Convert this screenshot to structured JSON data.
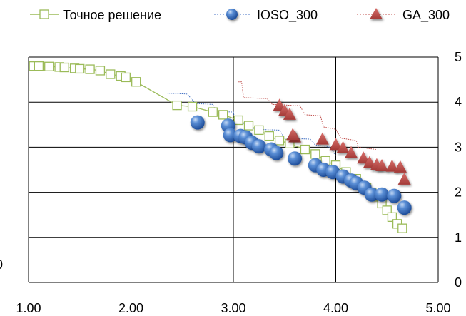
{
  "chart_data": {
    "type": "scatter",
    "title": "",
    "xlabel": "",
    "ylabel": "",
    "xlim": [
      1,
      5
    ],
    "ylim": [
      0,
      5
    ],
    "x_ticks": [
      "1.00",
      "2.00",
      "3.00",
      "4.00",
      "5.00"
    ],
    "y_ticks": [
      "0",
      "1",
      "2",
      "3",
      "4",
      "5"
    ],
    "left_edge_label": "0",
    "grid": true,
    "legend_position": "top",
    "series": [
      {
        "name": "Точное решение",
        "marker": "square-open",
        "color": "#9BBB59",
        "line": true,
        "points": [
          [
            1.05,
            4.8
          ],
          [
            1.1,
            4.8
          ],
          [
            1.2,
            4.79
          ],
          [
            1.3,
            4.78
          ],
          [
            1.35,
            4.77
          ],
          [
            1.45,
            4.75
          ],
          [
            1.5,
            4.74
          ],
          [
            1.6,
            4.73
          ],
          [
            1.7,
            4.7
          ],
          [
            1.8,
            4.62
          ],
          [
            1.9,
            4.58
          ],
          [
            1.95,
            4.55
          ],
          [
            2.05,
            4.45
          ],
          [
            2.45,
            3.93
          ],
          [
            2.6,
            3.9
          ],
          [
            2.8,
            3.78
          ],
          [
            2.9,
            3.72
          ],
          [
            3.05,
            3.6
          ],
          [
            3.15,
            3.48
          ],
          [
            3.25,
            3.38
          ],
          [
            3.35,
            3.25
          ],
          [
            3.45,
            3.15
          ],
          [
            3.55,
            3.08
          ],
          [
            3.7,
            2.95
          ],
          [
            3.8,
            2.85
          ],
          [
            3.9,
            2.7
          ],
          [
            4.0,
            2.6
          ],
          [
            4.1,
            2.45
          ],
          [
            4.2,
            2.3
          ],
          [
            4.3,
            2.1
          ],
          [
            4.35,
            2.0
          ],
          [
            4.4,
            1.9
          ],
          [
            4.45,
            1.75
          ],
          [
            4.5,
            1.6
          ],
          [
            4.55,
            1.45
          ],
          [
            4.6,
            1.3
          ],
          [
            4.65,
            1.2
          ]
        ]
      },
      {
        "name": "IOSO_300",
        "marker": "sphere",
        "color": "#4472C4",
        "line": false,
        "points": [
          [
            2.65,
            3.55
          ],
          [
            2.95,
            3.48
          ],
          [
            2.97,
            3.27
          ],
          [
            3.07,
            3.25
          ],
          [
            3.12,
            3.22
          ],
          [
            3.18,
            3.1
          ],
          [
            3.25,
            3.02
          ],
          [
            3.37,
            2.95
          ],
          [
            3.42,
            2.87
          ],
          [
            3.6,
            2.75
          ],
          [
            3.8,
            2.6
          ],
          [
            3.88,
            2.5
          ],
          [
            3.97,
            2.45
          ],
          [
            4.07,
            2.35
          ],
          [
            4.15,
            2.26
          ],
          [
            4.2,
            2.2
          ],
          [
            4.28,
            2.1
          ],
          [
            4.35,
            1.95
          ],
          [
            4.45,
            1.95
          ],
          [
            4.57,
            1.92
          ],
          [
            4.67,
            1.66
          ]
        ]
      },
      {
        "name": "GA_300",
        "marker": "triangle",
        "color": "#C0504D",
        "line": false,
        "points": [
          [
            3.45,
            3.92
          ],
          [
            3.5,
            3.8
          ],
          [
            3.55,
            3.72
          ],
          [
            3.6,
            3.22
          ],
          [
            3.58,
            3.27
          ],
          [
            3.87,
            3.17
          ],
          [
            4.0,
            3.05
          ],
          [
            4.07,
            2.98
          ],
          [
            4.15,
            2.87
          ],
          [
            4.27,
            2.75
          ],
          [
            4.33,
            2.65
          ],
          [
            4.4,
            2.6
          ],
          [
            4.45,
            2.58
          ],
          [
            4.55,
            2.57
          ],
          [
            4.63,
            2.55
          ],
          [
            4.67,
            2.28
          ]
        ]
      }
    ],
    "extra_lines": [
      {
        "name": "ioso-dotted-trace",
        "color": "#4472C4",
        "points": [
          [
            2.35,
            4.2
          ],
          [
            2.55,
            4.18
          ],
          [
            2.63,
            3.97
          ],
          [
            2.8,
            3.95
          ],
          [
            2.83,
            3.8
          ],
          [
            3.0,
            3.78
          ],
          [
            3.02,
            3.55
          ],
          [
            3.15,
            3.5
          ],
          [
            3.2,
            3.4
          ],
          [
            3.45,
            3.38
          ],
          [
            3.5,
            3.2
          ],
          [
            3.75,
            3.18
          ],
          [
            3.8,
            3.05
          ],
          [
            3.95,
            3.0
          ],
          [
            4.0,
            2.8
          ]
        ]
      },
      {
        "name": "ga-dotted-trace",
        "color": "#C0504D",
        "points": [
          [
            3.05,
            4.45
          ],
          [
            3.08,
            4.45
          ],
          [
            3.1,
            4.1
          ],
          [
            3.33,
            4.08
          ],
          [
            3.38,
            3.95
          ],
          [
            3.65,
            3.92
          ],
          [
            3.7,
            3.72
          ],
          [
            3.85,
            3.7
          ],
          [
            3.88,
            3.45
          ],
          [
            4.0,
            3.4
          ],
          [
            4.05,
            3.2
          ],
          [
            4.2,
            3.15
          ],
          [
            4.22,
            3.0
          ],
          [
            4.4,
            2.95
          ]
        ]
      }
    ]
  }
}
